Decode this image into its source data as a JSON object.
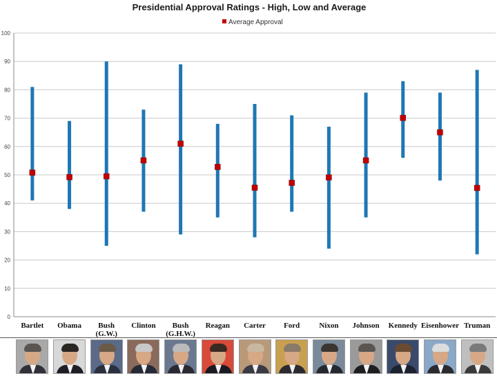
{
  "chart_data": {
    "type": "range",
    "title": "Presidential Approval Ratings - High, Low and Average",
    "legend": {
      "label": "Average Approval",
      "position": "top-center"
    },
    "ylim": [
      0,
      100
    ],
    "yticks": [
      "0",
      "10",
      "20",
      "30",
      "40",
      "50",
      "60",
      "70",
      "80",
      "90",
      "100"
    ],
    "grid": true,
    "categories": [
      "Bartlet",
      "Obama",
      "Bush (G.W.)",
      "Clinton",
      "Bush (G.H.W.)",
      "Reagan",
      "Carter",
      "Ford",
      "Nixon",
      "Johnson",
      "Kennedy",
      "Eisenhower",
      "Truman"
    ],
    "category_lines": [
      [
        "Bartlet"
      ],
      [
        "Obama"
      ],
      [
        "Bush",
        "(G.W.)"
      ],
      [
        "Clinton"
      ],
      [
        "Bush",
        "(G.H.W.)"
      ],
      [
        "Reagan"
      ],
      [
        "Carter"
      ],
      [
        "Ford"
      ],
      [
        "Nixon"
      ],
      [
        "Johnson"
      ],
      [
        "Kennedy"
      ],
      [
        "Eisenhower"
      ],
      [
        "Truman"
      ]
    ],
    "high": [
      81,
      69,
      90,
      73,
      89,
      68,
      75,
      71,
      67,
      79,
      83,
      79,
      87
    ],
    "low": [
      41,
      38,
      25,
      37,
      29,
      35,
      28,
      37,
      24,
      35,
      56,
      48,
      22
    ],
    "average": [
      50.8,
      49.2,
      49.5,
      55.1,
      61,
      52.8,
      45.5,
      47.2,
      49.1,
      55.1,
      70.1,
      65,
      45.4
    ],
    "colors": {
      "range_bar": "#1f77b4",
      "average_marker": "#c00000",
      "grid": "#c8c8c8",
      "axis": "#888888"
    }
  },
  "portraits": [
    {
      "name": "Bartlet",
      "bg": "#a9a9a9",
      "hair": "#5a5550",
      "suit": "#303038"
    },
    {
      "name": "Obama",
      "bg": "#d8d8d8",
      "hair": "#2a2622",
      "suit": "#1e1e26"
    },
    {
      "name": "Bush (G.W.)",
      "bg": "#5a6a88",
      "hair": "#6b5a48",
      "suit": "#2a3040"
    },
    {
      "name": "Clinton",
      "bg": "#8a6a5a",
      "hair": "#c8c8c8",
      "suit": "#242a36"
    },
    {
      "name": "Bush (G.H.W.)",
      "bg": "#6a7890",
      "hair": "#bbbbbb",
      "suit": "#2a2a34"
    },
    {
      "name": "Reagan",
      "bg": "#d84a3a",
      "hair": "#3a2a22",
      "suit": "#1a1a22"
    },
    {
      "name": "Carter",
      "bg": "#b89a7a",
      "hair": "#c8b8a0",
      "suit": "#3a3a44"
    },
    {
      "name": "Ford",
      "bg": "#c8a050",
      "hair": "#8a7a68",
      "suit": "#2a2a30"
    },
    {
      "name": "Nixon",
      "bg": "#7a8a9a",
      "hair": "#3a3530",
      "suit": "#242830"
    },
    {
      "name": "Johnson",
      "bg": "#9a9a9a",
      "hair": "#5a5550",
      "suit": "#1e1e22"
    },
    {
      "name": "Kennedy",
      "bg": "#3a4a6a",
      "hair": "#6a4a30",
      "suit": "#1e2230"
    },
    {
      "name": "Eisenhower",
      "bg": "#8aa8c8",
      "hair": "#dcdcdc",
      "suit": "#2a2a30"
    },
    {
      "name": "Truman",
      "bg": "#bfbfbf",
      "hair": "#7a7a7a",
      "suit": "#3a3a3a"
    }
  ]
}
